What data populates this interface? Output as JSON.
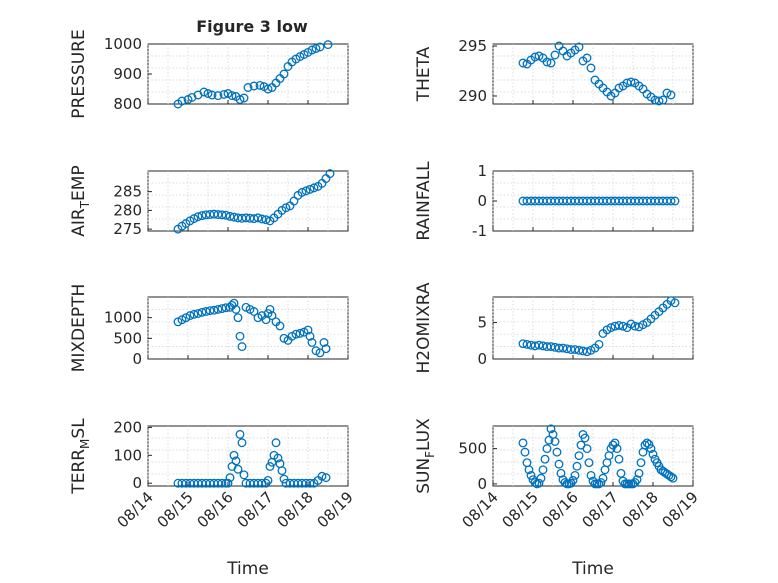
{
  "figure": {
    "title": "Figure 3 low"
  },
  "chart_data": [
    {
      "type": "scatter",
      "id": "pressure",
      "ylabel": "PRESSURE",
      "ylabel_parts": [],
      "xlabel": "",
      "ylim": [
        800,
        1000
      ],
      "yticks": [
        "800",
        "900",
        "1000"
      ],
      "xlim": [
        0,
        5
      ],
      "xticks": [
        "08/14",
        "08/15",
        "08/16",
        "08/17",
        "08/18",
        "08/19"
      ],
      "show_xticklabels": false,
      "x": [
        0.75,
        0.85,
        1.0,
        1.1,
        1.25,
        1.4,
        1.5,
        1.6,
        1.75,
        1.9,
        2.0,
        2.1,
        2.2,
        2.3,
        2.4,
        2.5,
        2.65,
        2.8,
        2.9,
        3.0,
        3.1,
        3.2,
        3.3,
        3.4,
        3.5,
        3.6,
        3.7,
        3.8,
        3.9,
        4.0,
        4.1,
        4.2,
        4.3,
        4.5
      ],
      "y": [
        800,
        810,
        815,
        822,
        830,
        840,
        835,
        830,
        828,
        832,
        835,
        828,
        825,
        815,
        820,
        855,
        860,
        862,
        858,
        850,
        855,
        870,
        885,
        900,
        925,
        940,
        950,
        958,
        965,
        972,
        980,
        985,
        990,
        998
      ]
    },
    {
      "type": "scatter",
      "id": "theta",
      "ylabel": "THETA",
      "ylabel_parts": [],
      "xlabel": "",
      "ylim": [
        289.2,
        295.2
      ],
      "yticks": [
        "290",
        "295"
      ],
      "xlim": [
        0,
        5
      ],
      "xticks": [
        "08/14",
        "08/15",
        "08/16",
        "08/17",
        "08/18",
        "08/19"
      ],
      "show_xticklabels": false,
      "x": [
        0.75,
        0.85,
        0.95,
        1.05,
        1.15,
        1.25,
        1.35,
        1.45,
        1.55,
        1.65,
        1.75,
        1.85,
        1.95,
        2.05,
        2.15,
        2.25,
        2.35,
        2.45,
        2.55,
        2.65,
        2.75,
        2.85,
        2.95,
        3.05,
        3.15,
        3.25,
        3.35,
        3.45,
        3.55,
        3.65,
        3.75,
        3.85,
        3.95,
        4.05,
        4.15,
        4.25,
        4.35,
        4.45
      ],
      "y": [
        293.3,
        293.2,
        293.6,
        293.9,
        294.0,
        293.8,
        293.4,
        293.3,
        294.1,
        295.0,
        294.5,
        294.0,
        294.3,
        294.6,
        294.9,
        293.5,
        293.8,
        292.8,
        291.6,
        291.2,
        290.8,
        290.4,
        290.0,
        290.3,
        290.8,
        291.0,
        291.3,
        291.4,
        291.3,
        291.0,
        290.7,
        290.2,
        289.9,
        289.6,
        289.5,
        289.6,
        290.3,
        290.1
      ]
    },
    {
      "type": "scatter",
      "id": "air_temp",
      "ylabel": "AIR_TEMP",
      "ylabel_parts": [
        "AIR",
        "T",
        "EMP"
      ],
      "xlabel": "",
      "ylim": [
        274.5,
        290.5
      ],
      "yticks": [
        "275",
        "280",
        "285"
      ],
      "xlim": [
        0,
        5
      ],
      "xticks": [
        "08/14",
        "08/15",
        "08/16",
        "08/17",
        "08/18",
        "08/19"
      ],
      "show_xticklabels": false,
      "x": [
        0.75,
        0.85,
        0.95,
        1.05,
        1.15,
        1.25,
        1.35,
        1.45,
        1.55,
        1.65,
        1.75,
        1.85,
        1.95,
        2.05,
        2.15,
        2.25,
        2.35,
        2.45,
        2.55,
        2.65,
        2.75,
        2.85,
        2.95,
        3.05,
        3.15,
        3.25,
        3.35,
        3.45,
        3.55,
        3.65,
        3.75,
        3.85,
        3.95,
        4.05,
        4.15,
        4.25,
        4.35,
        4.45,
        4.55
      ],
      "y": [
        275.0,
        275.8,
        276.5,
        277.2,
        277.8,
        278.3,
        278.6,
        278.8,
        278.9,
        279.0,
        278.9,
        278.8,
        278.7,
        278.4,
        278.2,
        278.0,
        277.9,
        278.0,
        277.9,
        277.8,
        278.0,
        277.7,
        277.5,
        277.2,
        278.0,
        279.0,
        280.0,
        280.7,
        281.2,
        282.5,
        284.0,
        284.8,
        285.2,
        285.6,
        286.0,
        286.4,
        287.2,
        288.5,
        289.8
      ]
    },
    {
      "type": "scatter",
      "id": "rainfall",
      "ylabel": "RAINFALL",
      "ylabel_parts": [],
      "xlabel": "",
      "ylim": [
        -1,
        1
      ],
      "yticks": [
        "-1",
        "0",
        "1"
      ],
      "xlim": [
        0,
        5
      ],
      "xticks": [
        "08/14",
        "08/15",
        "08/16",
        "08/17",
        "08/18",
        "08/19"
      ],
      "show_xticklabels": false,
      "x": [
        0.75,
        0.85,
        0.95,
        1.05,
        1.15,
        1.25,
        1.35,
        1.45,
        1.55,
        1.65,
        1.75,
        1.85,
        1.95,
        2.05,
        2.15,
        2.25,
        2.35,
        2.45,
        2.55,
        2.65,
        2.75,
        2.85,
        2.95,
        3.05,
        3.15,
        3.25,
        3.35,
        3.45,
        3.55,
        3.65,
        3.75,
        3.85,
        3.95,
        4.05,
        4.15,
        4.25,
        4.35,
        4.45,
        4.55
      ],
      "y": [
        0,
        0,
        0,
        0,
        0,
        0,
        0,
        0,
        0,
        0,
        0,
        0,
        0,
        0,
        0,
        0,
        0,
        0,
        0,
        0,
        0,
        0,
        0,
        0,
        0,
        0,
        0,
        0,
        0,
        0,
        0,
        0,
        0,
        0,
        0,
        0,
        0,
        0,
        0
      ]
    },
    {
      "type": "scatter",
      "id": "mixdepth",
      "ylabel": "MIXDEPTH",
      "ylabel_parts": [],
      "xlabel": "",
      "ylim": [
        0,
        1500
      ],
      "yticks": [
        "0",
        "500",
        "1000"
      ],
      "xlim": [
        0,
        5
      ],
      "xticks": [
        "08/14",
        "08/15",
        "08/16",
        "08/17",
        "08/18",
        "08/19"
      ],
      "show_xticklabels": false,
      "x": [
        0.75,
        0.85,
        0.95,
        1.05,
        1.15,
        1.25,
        1.35,
        1.45,
        1.55,
        1.65,
        1.75,
        1.85,
        1.95,
        2.05,
        2.1,
        2.15,
        2.2,
        2.25,
        2.3,
        2.35,
        2.45,
        2.55,
        2.65,
        2.75,
        2.85,
        2.95,
        3.0,
        3.05,
        3.1,
        3.2,
        3.3,
        3.4,
        3.5,
        3.6,
        3.7,
        3.8,
        3.9,
        4.0,
        4.05,
        4.1,
        4.2,
        4.3,
        4.4,
        4.45
      ],
      "y": [
        900,
        950,
        1000,
        1050,
        1080,
        1100,
        1130,
        1150,
        1170,
        1180,
        1200,
        1220,
        1240,
        1250,
        1300,
        1350,
        1200,
        1000,
        550,
        300,
        1250,
        1200,
        1150,
        1000,
        1050,
        950,
        1100,
        1200,
        1050,
        900,
        800,
        500,
        450,
        550,
        600,
        620,
        650,
        700,
        550,
        400,
        200,
        150,
        400,
        250
      ]
    },
    {
      "type": "scatter",
      "id": "h2omixra",
      "ylabel": "H2OMIXRA",
      "ylabel_parts": [],
      "xlabel": "",
      "ylim": [
        0,
        8.5
      ],
      "yticks": [
        "0",
        "5"
      ],
      "xlim": [
        0,
        5
      ],
      "xticks": [
        "08/14",
        "08/15",
        "08/16",
        "08/17",
        "08/18",
        "08/19"
      ],
      "show_xticklabels": false,
      "x": [
        0.75,
        0.85,
        0.95,
        1.05,
        1.15,
        1.25,
        1.35,
        1.45,
        1.55,
        1.65,
        1.75,
        1.85,
        1.95,
        2.05,
        2.15,
        2.25,
        2.35,
        2.45,
        2.55,
        2.65,
        2.75,
        2.85,
        2.95,
        3.05,
        3.15,
        3.25,
        3.35,
        3.45,
        3.55,
        3.65,
        3.75,
        3.85,
        3.95,
        4.05,
        4.15,
        4.25,
        4.35,
        4.45,
        4.55
      ],
      "y": [
        2.1,
        2.0,
        1.9,
        1.8,
        1.9,
        1.8,
        1.7,
        1.7,
        1.6,
        1.5,
        1.5,
        1.4,
        1.3,
        1.3,
        1.2,
        1.1,
        1.0,
        1.2,
        1.5,
        2.0,
        3.5,
        4.0,
        4.3,
        4.5,
        4.6,
        4.5,
        4.3,
        4.8,
        4.5,
        4.4,
        4.7,
        5.0,
        5.5,
        6.0,
        6.5,
        7.0,
        7.5,
        8.0,
        7.7
      ]
    },
    {
      "type": "scatter",
      "id": "terr_msl",
      "ylabel": "TERR_MSL",
      "ylabel_parts": [
        "TERR",
        "M",
        "SL"
      ],
      "xlabel": "Time",
      "ylim": [
        -10,
        205
      ],
      "yticks": [
        "0",
        "100",
        "200"
      ],
      "xlim": [
        0,
        5
      ],
      "xticks": [
        "08/14",
        "08/15",
        "08/16",
        "08/17",
        "08/18",
        "08/19"
      ],
      "show_xticklabels": true,
      "x": [
        0.75,
        0.85,
        0.95,
        1.05,
        1.15,
        1.25,
        1.35,
        1.45,
        1.55,
        1.65,
        1.75,
        1.85,
        1.95,
        2.0,
        2.05,
        2.1,
        2.15,
        2.2,
        2.25,
        2.3,
        2.35,
        2.4,
        2.45,
        2.55,
        2.65,
        2.75,
        2.85,
        2.95,
        3.0,
        3.05,
        3.1,
        3.15,
        3.2,
        3.25,
        3.3,
        3.35,
        3.4,
        3.45,
        3.55,
        3.65,
        3.75,
        3.85,
        3.95,
        4.05,
        4.15,
        4.25,
        4.35,
        4.45
      ],
      "y": [
        0,
        0,
        0,
        0,
        0,
        0,
        0,
        0,
        0,
        0,
        0,
        0,
        0,
        0,
        20,
        60,
        100,
        80,
        50,
        175,
        145,
        30,
        0,
        0,
        0,
        0,
        0,
        0,
        10,
        60,
        75,
        100,
        145,
        90,
        70,
        45,
        15,
        0,
        0,
        0,
        0,
        0,
        0,
        0,
        0,
        10,
        25,
        20
      ]
    },
    {
      "type": "scatter",
      "id": "sun_flux",
      "ylabel": "SUN_FLUX",
      "ylabel_parts": [
        "SUN",
        "F",
        "LUX"
      ],
      "xlabel": "Time",
      "ylim": [
        -30,
        820
      ],
      "yticks": [
        "0",
        "500"
      ],
      "xlim": [
        0,
        5
      ],
      "xticks": [
        "08/14",
        "08/15",
        "08/16",
        "08/17",
        "08/18",
        "08/19"
      ],
      "show_xticklabels": true,
      "x": [
        0.75,
        0.8,
        0.85,
        0.9,
        0.95,
        1.0,
        1.05,
        1.1,
        1.15,
        1.2,
        1.25,
        1.3,
        1.35,
        1.4,
        1.45,
        1.5,
        1.55,
        1.6,
        1.65,
        1.7,
        1.75,
        1.8,
        1.85,
        1.9,
        1.95,
        2.0,
        2.05,
        2.1,
        2.15,
        2.2,
        2.25,
        2.3,
        2.35,
        2.4,
        2.45,
        2.5,
        2.55,
        2.6,
        2.65,
        2.7,
        2.75,
        2.8,
        2.85,
        2.9,
        2.95,
        3.0,
        3.05,
        3.1,
        3.15,
        3.2,
        3.25,
        3.3,
        3.35,
        3.4,
        3.45,
        3.5,
        3.55,
        3.6,
        3.65,
        3.7,
        3.75,
        3.8,
        3.85,
        3.9,
        3.95,
        4.0,
        4.05,
        4.1,
        4.15,
        4.2,
        4.25,
        4.3,
        4.35,
        4.4,
        4.45,
        4.5
      ],
      "y": [
        580,
        450,
        300,
        200,
        120,
        60,
        20,
        0,
        10,
        80,
        200,
        350,
        500,
        620,
        780,
        700,
        600,
        450,
        280,
        150,
        60,
        20,
        0,
        0,
        10,
        50,
        120,
        250,
        400,
        550,
        700,
        650,
        500,
        300,
        120,
        40,
        0,
        0,
        0,
        20,
        80,
        200,
        300,
        400,
        500,
        550,
        580,
        500,
        350,
        150,
        40,
        0,
        0,
        0,
        0,
        0,
        20,
        60,
        150,
        300,
        450,
        550,
        580,
        560,
        500,
        420,
        350,
        300,
        250,
        200,
        180,
        160,
        140,
        120,
        100,
        80
      ]
    }
  ]
}
